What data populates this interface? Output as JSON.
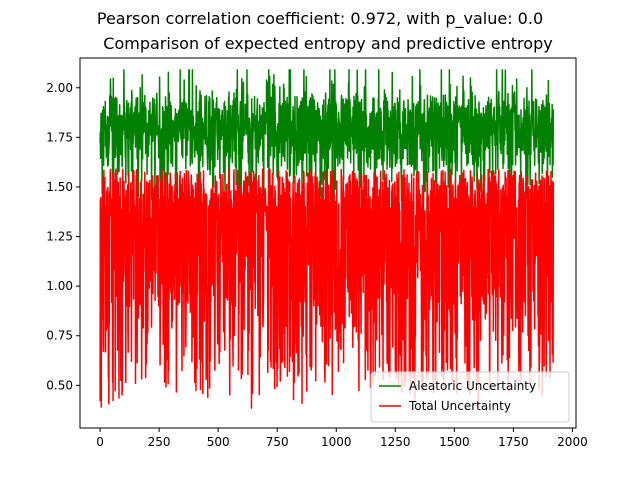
{
  "chart_data": {
    "type": "line",
    "suptitle": "Pearson correlation coefficient: 0.972, with p_value: 0.0",
    "title": "Comparison of expected entropy and predictive entropy",
    "xlabel": "",
    "ylabel": "",
    "xlim": [
      -85,
      2015
    ],
    "ylim": [
      0.285,
      2.15
    ],
    "xticks": [
      0,
      250,
      500,
      750,
      1000,
      1250,
      1500,
      1750,
      2000
    ],
    "xtick_labels": [
      "0",
      "250",
      "500",
      "750",
      "1000",
      "1250",
      "1500",
      "1750",
      "2000"
    ],
    "yticks": [
      0.5,
      0.75,
      1.0,
      1.25,
      1.5,
      1.75,
      2.0
    ],
    "ytick_labels": [
      "0.50",
      "0.75",
      "1.00",
      "1.25",
      "1.50",
      "1.75",
      "2.00"
    ],
    "n_points": 1920,
    "legend_position": "lower right",
    "grid": false,
    "series": [
      {
        "name": "Aleatoric Uncertainty",
        "color": "#008000",
        "approx_range": [
          1.43,
          2.09
        ],
        "typical_band": [
          1.5,
          1.95
        ]
      },
      {
        "name": "Total Uncertainty",
        "color": "#ff0000",
        "approx_range": [
          0.38,
          1.59
        ],
        "typical_band": [
          0.55,
          1.57
        ]
      }
    ]
  }
}
